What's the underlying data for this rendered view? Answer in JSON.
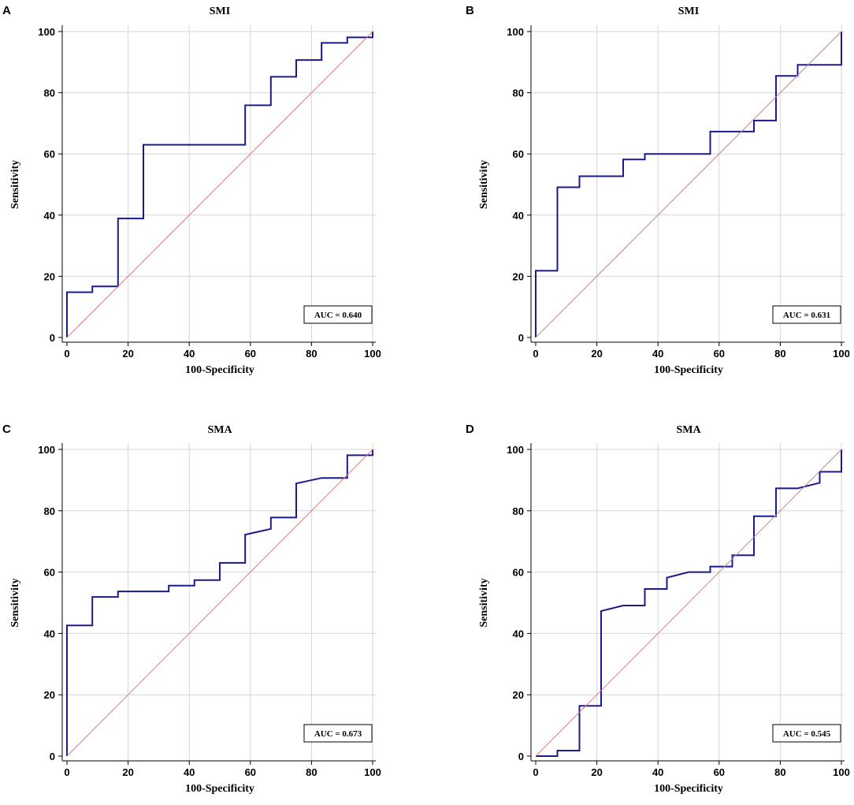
{
  "chart_data": [
    {
      "type": "line",
      "panel": "A",
      "title": "SMI",
      "xlabel": "100-Specificity",
      "ylabel": "Sensitivity",
      "xlim": [
        0,
        100
      ],
      "ylim": [
        0,
        100
      ],
      "xticks": [
        "0",
        "20",
        "40",
        "60",
        "80",
        "100"
      ],
      "yticks": [
        "0",
        "20",
        "40",
        "60",
        "80",
        "100"
      ],
      "auc_label": "AUC = 0.640",
      "series": [
        {
          "name": "ROC",
          "x": [
            0,
            0,
            8.3,
            8.3,
            16.7,
            16.7,
            25,
            25,
            58.3,
            58.3,
            66.7,
            66.7,
            75,
            75,
            83.3,
            83.3,
            91.7,
            91.7,
            100,
            100
          ],
          "y": [
            0,
            14.8,
            14.8,
            16.7,
            16.7,
            38.9,
            38.9,
            63,
            63,
            75.9,
            75.9,
            85.2,
            85.2,
            90.7,
            90.7,
            96.3,
            96.3,
            98.1,
            98.1,
            100
          ]
        },
        {
          "name": "Reference",
          "x": [
            0,
            100
          ],
          "y": [
            0,
            100
          ]
        }
      ]
    },
    {
      "type": "line",
      "panel": "B",
      "title": "SMI",
      "xlabel": "100-Specificity",
      "ylabel": "Sensitivity",
      "xlim": [
        0,
        100
      ],
      "ylim": [
        0,
        100
      ],
      "xticks": [
        "0",
        "20",
        "40",
        "60",
        "80",
        "100"
      ],
      "yticks": [
        "0",
        "20",
        "40",
        "60",
        "80",
        "100"
      ],
      "auc_label": "AUC = 0.631",
      "series": [
        {
          "name": "ROC",
          "x": [
            0,
            0,
            7.1,
            7.1,
            14.3,
            14.3,
            28.6,
            28.6,
            35.7,
            35.7,
            57.1,
            57.1,
            71.4,
            71.4,
            78.6,
            78.6,
            85.7,
            85.7,
            100,
            100
          ],
          "y": [
            0,
            21.8,
            21.8,
            49.1,
            49.1,
            52.7,
            52.7,
            58.2,
            58.2,
            60,
            60,
            67.3,
            67.3,
            70.9,
            70.9,
            85.5,
            85.5,
            89.1,
            89.1,
            100
          ]
        },
        {
          "name": "Reference",
          "x": [
            0,
            100
          ],
          "y": [
            0,
            100
          ]
        }
      ]
    },
    {
      "type": "line",
      "panel": "C",
      "title": "SMA",
      "xlabel": "100-Specificity",
      "ylabel": "Sensitivity",
      "xlim": [
        0,
        100
      ],
      "ylim": [
        0,
        100
      ],
      "xticks": [
        "0",
        "20",
        "40",
        "60",
        "80",
        "100"
      ],
      "yticks": [
        "0",
        "20",
        "40",
        "60",
        "80",
        "100"
      ],
      "auc_label": "AUC = 0.673",
      "series": [
        {
          "name": "ROC",
          "x": [
            0,
            0,
            8.3,
            8.3,
            16.7,
            16.7,
            33.3,
            33.3,
            41.7,
            41.7,
            50,
            50,
            58.3,
            58.3,
            66.7,
            66.7,
            75,
            75,
            83.3,
            91.7,
            91.7,
            100,
            100
          ],
          "y": [
            0,
            42.6,
            42.6,
            51.9,
            51.9,
            53.7,
            53.7,
            55.6,
            55.6,
            57.4,
            57.4,
            63,
            63,
            72.2,
            74.1,
            77.8,
            77.8,
            88.9,
            90.7,
            90.7,
            98.1,
            98.1,
            100
          ]
        },
        {
          "name": "Reference",
          "x": [
            0,
            100
          ],
          "y": [
            0,
            100
          ]
        }
      ]
    },
    {
      "type": "line",
      "panel": "D",
      "title": "SMA",
      "xlabel": "100-Specificity",
      "ylabel": "Sensitivity",
      "xlim": [
        0,
        100
      ],
      "ylim": [
        0,
        100
      ],
      "xticks": [
        "0",
        "20",
        "40",
        "60",
        "80",
        "100"
      ],
      "yticks": [
        "0",
        "20",
        "40",
        "60",
        "80",
        "100"
      ],
      "auc_label": "AUC = 0.545",
      "series": [
        {
          "name": "ROC",
          "x": [
            0,
            7.1,
            7.1,
            14.3,
            14.3,
            21.4,
            21.4,
            28.6,
            35.7,
            35.7,
            42.9,
            42.9,
            50,
            57.1,
            57.1,
            64.3,
            64.3,
            71.4,
            71.4,
            78.6,
            78.6,
            85.7,
            92.9,
            92.9,
            100,
            100
          ],
          "y": [
            0,
            0,
            1.8,
            1.8,
            16.4,
            16.4,
            47.3,
            49.1,
            49.1,
            54.5,
            54.5,
            58.2,
            60,
            60,
            61.8,
            61.8,
            65.5,
            65.5,
            78.2,
            78.2,
            87.3,
            87.3,
            89.1,
            92.7,
            92.7,
            100
          ]
        },
        {
          "name": "Reference",
          "x": [
            0,
            100
          ],
          "y": [
            0,
            100
          ]
        }
      ]
    }
  ]
}
